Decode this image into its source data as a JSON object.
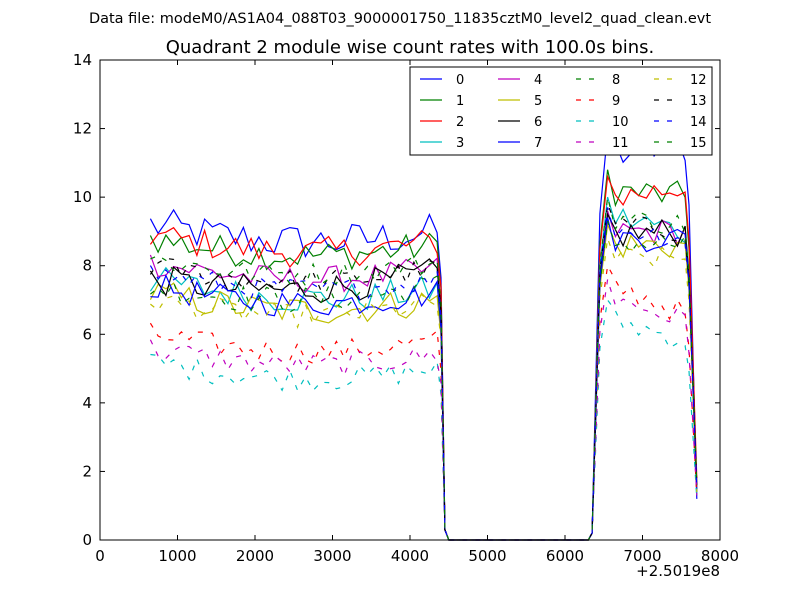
{
  "figure": {
    "suptitle": "Data file: modeM0/AS1A04_088T03_9000001750_11835cztM0_level2_quad_clean.evt"
  },
  "chart_data": {
    "type": "line",
    "title": "Quadrant 2 module wise count rates with 100.0s bins.",
    "xlabel": "",
    "ylabel": "",
    "x_offset_label": "+2.5019e8",
    "xlim": [
      0,
      8000
    ],
    "ylim": [
      0,
      14
    ],
    "xticks": [
      0,
      1000,
      2000,
      3000,
      4000,
      5000,
      6000,
      7000,
      8000
    ],
    "yticks": [
      0,
      2,
      4,
      6,
      8,
      10,
      12,
      14
    ],
    "xticklabels": [
      "0",
      "1000",
      "2000",
      "3000",
      "4000",
      "5000",
      "6000",
      "7000",
      "8000"
    ],
    "yticklabels": [
      "0",
      "2",
      "4",
      "6",
      "8",
      "10",
      "12",
      "14"
    ],
    "grid": false,
    "legend_placement": "top-right",
    "segments": [
      {
        "x_start": 650,
        "x_end": 4350,
        "step": 100
      },
      {
        "x_start": 4450,
        "x_end": 4450,
        "step": 100
      },
      {
        "x_start": 6350,
        "x_end": 6350,
        "step": 100
      },
      {
        "x_start": 6450,
        "x_end": 7650,
        "step": 100
      },
      {
        "x_start": 7700,
        "x_end": 7700,
        "step": 100
      }
    ],
    "series": [
      {
        "name": "0",
        "color": "#0000ff",
        "dash": "solid",
        "levels": [
          9.2,
          9.0,
          11.9,
          11.5,
          1.2
        ],
        "noise": 0.55
      },
      {
        "name": "1",
        "color": "#008000",
        "dash": "solid",
        "levels": [
          8.8,
          8.6,
          10.8,
          10.0,
          1.5
        ],
        "noise": 0.45
      },
      {
        "name": "2",
        "color": "#ff0000",
        "dash": "solid",
        "levels": [
          8.9,
          8.7,
          10.6,
          10.3,
          1.8
        ],
        "noise": 0.45
      },
      {
        "name": "3",
        "color": "#00bfbf",
        "dash": "solid",
        "levels": [
          7.6,
          7.3,
          10.0,
          9.0,
          1.3
        ],
        "noise": 0.45
      },
      {
        "name": "4",
        "color": "#bf00bf",
        "dash": "solid",
        "levels": [
          8.1,
          7.9,
          9.6,
          9.0,
          1.5
        ],
        "noise": 0.4
      },
      {
        "name": "5",
        "color": "#bfbf00",
        "dash": "solid",
        "levels": [
          7.2,
          7.0,
          9.2,
          8.6,
          1.4
        ],
        "noise": 0.45
      },
      {
        "name": "6",
        "color": "#000000",
        "dash": "solid",
        "levels": [
          7.6,
          7.8,
          9.5,
          9.0,
          1.6
        ],
        "noise": 0.45
      },
      {
        "name": "7",
        "color": "#0000ff",
        "dash": "solid",
        "levels": [
          7.4,
          7.2,
          9.4,
          8.8,
          1.4
        ],
        "noise": 0.4
      },
      {
        "name": "8",
        "color": "#008000",
        "dash": "dashed",
        "levels": [
          7.4,
          7.4,
          9.3,
          8.6,
          1.5
        ],
        "noise": 0.4
      },
      {
        "name": "9",
        "color": "#ff0000",
        "dash": "dashed",
        "levels": [
          6.0,
          5.8,
          8.0,
          6.6,
          1.3
        ],
        "noise": 0.35
      },
      {
        "name": "10",
        "color": "#00bfbf",
        "dash": "dashed",
        "levels": [
          5.2,
          5.0,
          7.0,
          5.8,
          1.2
        ],
        "noise": 0.35
      },
      {
        "name": "11",
        "color": "#bf00bf",
        "dash": "dashed",
        "levels": [
          5.6,
          5.4,
          7.6,
          6.4,
          1.3
        ],
        "noise": 0.35
      },
      {
        "name": "12",
        "color": "#bfbf00",
        "dash": "dashed",
        "levels": [
          7.0,
          6.9,
          8.8,
          8.2,
          1.4
        ],
        "noise": 0.35
      },
      {
        "name": "13",
        "color": "#000000",
        "dash": "dashed",
        "levels": [
          8.0,
          7.9,
          9.8,
          9.0,
          1.6
        ],
        "noise": 0.35
      },
      {
        "name": "14",
        "color": "#0000ff",
        "dash": "dashed",
        "levels": [
          7.8,
          7.6,
          9.7,
          8.8,
          1.5
        ],
        "noise": 0.35
      },
      {
        "name": "15",
        "color": "#008000",
        "dash": "dashed",
        "levels": [
          8.2,
          8.1,
          10.0,
          9.2,
          1.6
        ],
        "noise": 0.35
      }
    ],
    "gap": {
      "x_start": 4500,
      "x_end": 6300,
      "value": 0
    }
  }
}
